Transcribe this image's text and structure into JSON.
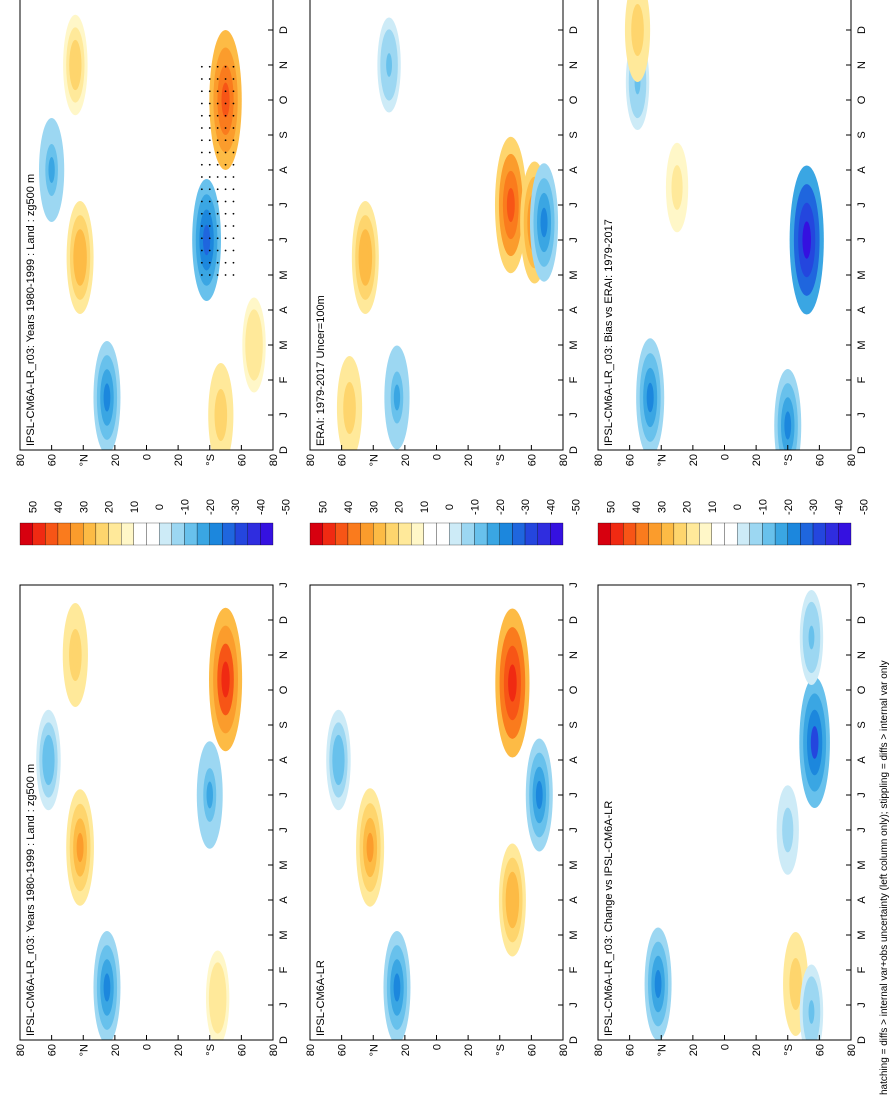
{
  "figure": {
    "footnote": "hatching = diffs > internal var+obs uncertainty (left column only); stippling = diffs > internal var only",
    "colorbar_labels": [
      "50",
      "40",
      "30",
      "20",
      "10",
      "0",
      "-10",
      "-20",
      "-30",
      "-40",
      "-50"
    ],
    "colorbar_colors": [
      "#d7000f",
      "#f02a12",
      "#f75516",
      "#fa7b1d",
      "#fb9c2c",
      "#fdbb45",
      "#fed56d",
      "#ffe99a",
      "#fff7c8",
      "#ffffff",
      "#ffffff",
      "#cdebf7",
      "#9cd7f2",
      "#68c1ec",
      "#3aa6e3",
      "#1c87dd",
      "#1f66de",
      "#2446de",
      "#2f2ddf",
      "#3511e0"
    ],
    "month_ticks": [
      "D",
      "J",
      "F",
      "M",
      "A",
      "M",
      "J",
      "J",
      "A",
      "S",
      "O",
      "N",
      "D",
      "J"
    ],
    "lat_ticks": [
      "80",
      "60",
      "°N",
      "20",
      "0",
      "20",
      "°S",
      "60",
      "80"
    ]
  },
  "chart_data": [
    {
      "type": "heatmap",
      "title": "IPSL-CM6A-LR_r03: Years 1980-1999 : Land : zg500 m",
      "x": "month (Dec–Jan)",
      "y": "latitude (80N–80S)",
      "zlim": [
        -50,
        50
      ],
      "hatching": true,
      "features": [
        {
          "month": 5.5,
          "lat": 42,
          "value": 25,
          "desc": "NH spring–summer positive anomaly"
        },
        {
          "month": 11,
          "lat": 45,
          "value": 18
        },
        {
          "month": 10,
          "lat": -50,
          "value": 40,
          "desc": "SH austral spring maximum"
        },
        {
          "month": 1,
          "lat": -47,
          "value": 20
        },
        {
          "month": 1.5,
          "lat": 25,
          "value": -25
        },
        {
          "month": 8,
          "lat": 60,
          "value": -20
        },
        {
          "month": 6,
          "lat": -38,
          "value": -30
        },
        {
          "month": 3,
          "lat": -68,
          "value": 15
        }
      ]
    },
    {
      "type": "heatmap",
      "title": "IPSL-CM6A-LR_r03: Years 1980-1999 : Land : zg500 m",
      "x": "month (Dec–Jan)",
      "y": "latitude (80N–80S)",
      "zlim": [
        -50,
        50
      ],
      "features": [
        {
          "month": 5.5,
          "lat": 42,
          "value": 27
        },
        {
          "month": 11,
          "lat": 45,
          "value": 20
        },
        {
          "month": 10.3,
          "lat": -50,
          "value": 42
        },
        {
          "month": 1.2,
          "lat": -45,
          "value": 15
        },
        {
          "month": 1.5,
          "lat": 25,
          "value": -25
        },
        {
          "month": 8,
          "lat": 62,
          "value": -18
        },
        {
          "month": 7,
          "lat": -40,
          "value": -22
        }
      ]
    },
    {
      "type": "heatmap",
      "title": "ERAI: 1979-2017 Uncer=100m",
      "x": "month (Dec–Jan)",
      "y": "latitude (80N–80S)",
      "zlim": [
        -50,
        50
      ],
      "features": [
        {
          "month": 5.5,
          "lat": 45,
          "value": 25
        },
        {
          "month": 1.2,
          "lat": 55,
          "value": 20
        },
        {
          "month": 7,
          "lat": -47,
          "value": 38,
          "desc": "persistent SH mid-lat positive band"
        },
        {
          "month": 6.5,
          "lat": -62,
          "value": 30
        },
        {
          "month": 6.5,
          "lat": -68,
          "value": -28
        },
        {
          "month": 1.5,
          "lat": 25,
          "value": -20
        },
        {
          "month": 11,
          "lat": 30,
          "value": -15
        }
      ]
    },
    {
      "type": "heatmap",
      "title": "IPSL-CM6A-LR",
      "x": "month (Dec–Jan)",
      "y": "latitude (80N–80S)",
      "zlim": [
        -50,
        50
      ],
      "features": [
        {
          "month": 5.5,
          "lat": 42,
          "value": 28
        },
        {
          "month": 10.2,
          "lat": -48,
          "value": 45
        },
        {
          "month": 4,
          "lat": -48,
          "value": 25
        },
        {
          "month": 1.5,
          "lat": 25,
          "value": -25
        },
        {
          "month": 8,
          "lat": 62,
          "value": -18
        },
        {
          "month": 7,
          "lat": -65,
          "value": -25
        }
      ]
    },
    {
      "type": "heatmap",
      "title": "IPSL-CM6A-LR_r03: Bias vs ERAI: 1979-2017",
      "x": "month (Dec–Jan)",
      "y": "latitude (80N–80S)",
      "zlim": [
        -50,
        50
      ],
      "features": [
        {
          "month": 1.5,
          "lat": 47,
          "value": -28
        },
        {
          "month": 10.5,
          "lat": 55,
          "value": -15
        },
        {
          "month": 6,
          "lat": -52,
          "value": -45,
          "desc": "SH negative bias"
        },
        {
          "month": 7.5,
          "lat": 30,
          "value": 12
        },
        {
          "month": 12,
          "lat": 55,
          "value": 20
        },
        {
          "month": 0.7,
          "lat": -40,
          "value": -25
        }
      ]
    },
    {
      "type": "heatmap",
      "title": "IPSL-CM6A-LR_r03: Change vs IPSL-CM6A-LR",
      "x": "month (Dec–Jan)",
      "y": "latitude (80N–80S)",
      "zlim": [
        -50,
        50
      ],
      "features": [
        {
          "month": 1.6,
          "lat": 42,
          "value": -25
        },
        {
          "month": 1.6,
          "lat": -45,
          "value": 20
        },
        {
          "month": 8.5,
          "lat": -57,
          "value": -35
        },
        {
          "month": 11.5,
          "lat": -55,
          "value": -15
        },
        {
          "month": 0.8,
          "lat": -55,
          "value": -15
        },
        {
          "month": 6,
          "lat": -40,
          "value": -12
        }
      ]
    }
  ]
}
